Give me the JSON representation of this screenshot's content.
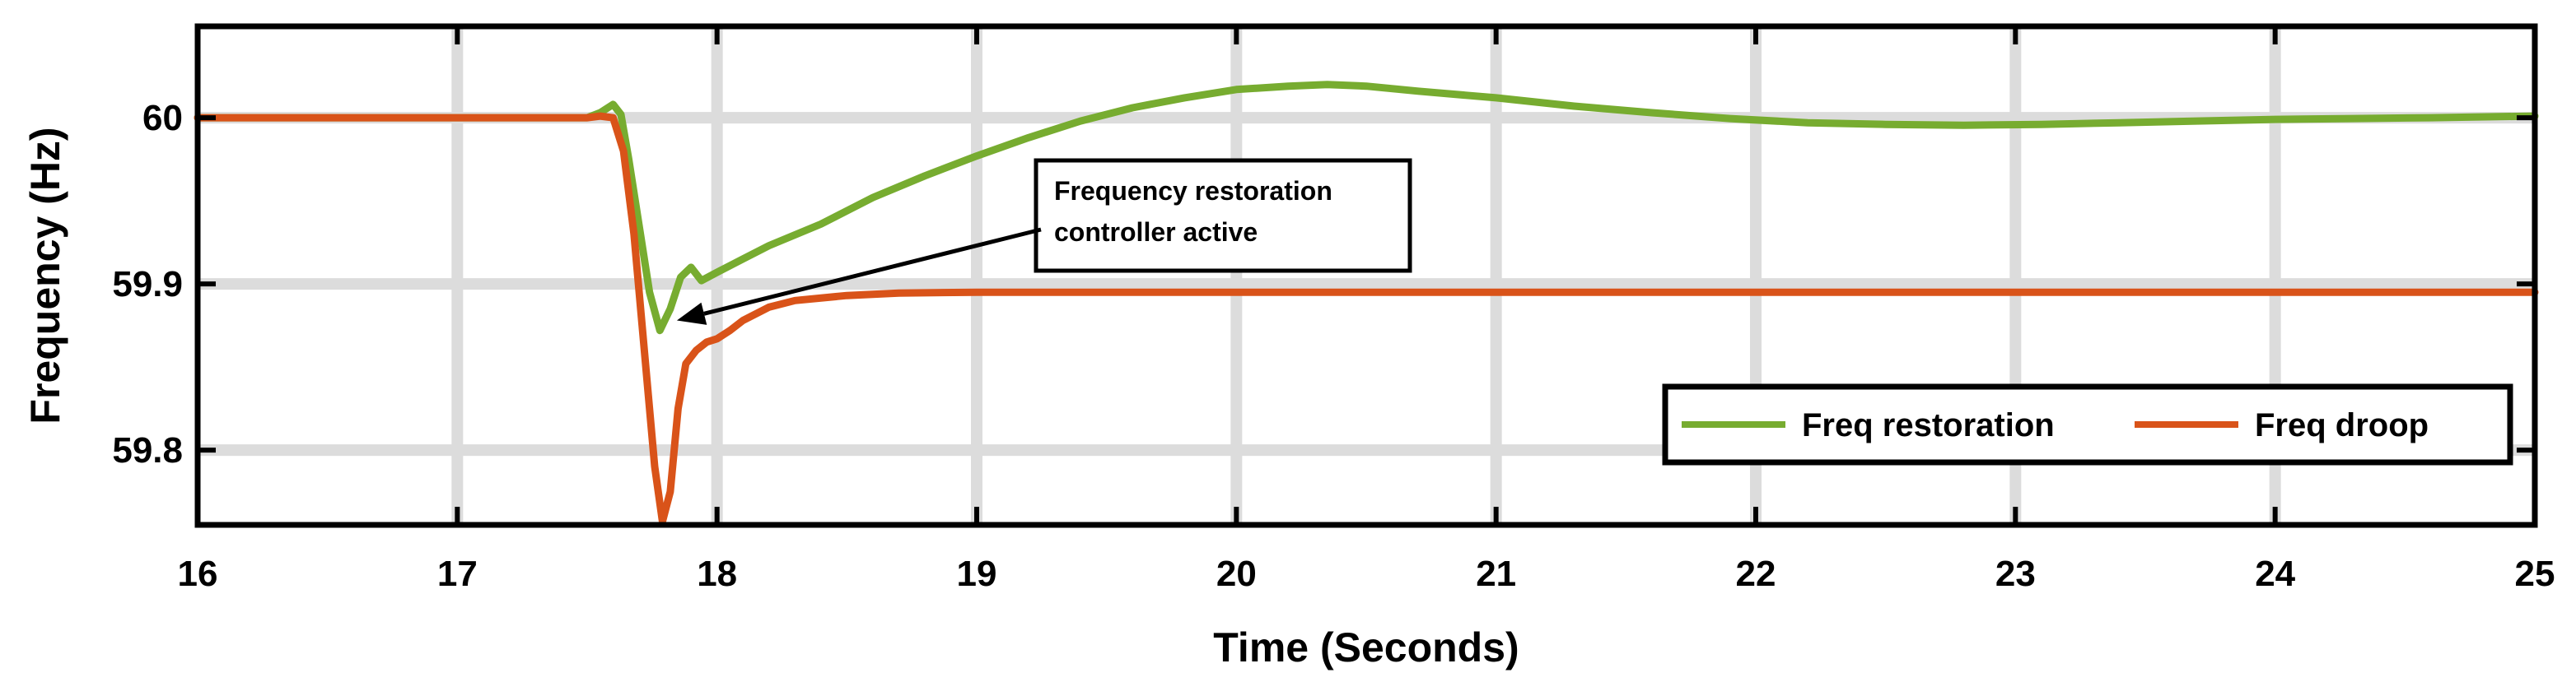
{
  "chart_data": {
    "type": "line",
    "xlabel": "Time (Seconds)",
    "ylabel": "Frequency (Hz)",
    "xlim": [
      16,
      25
    ],
    "ylim": [
      59.755,
      60.055
    ],
    "xticks": [
      16,
      17,
      18,
      19,
      20,
      21,
      22,
      23,
      24,
      25
    ],
    "yticks": [
      59.8,
      59.9,
      60
    ],
    "ytick_labels": [
      "59.8",
      "59.9",
      "60"
    ],
    "grid": true,
    "legend_position": "bottom-right",
    "annotation": {
      "lines": [
        "Frequency restoration",
        "controller active"
      ],
      "arrow_target": [
        17.82,
        59.877
      ]
    },
    "series": [
      {
        "name": "Freq restoration",
        "color": "#77ac30",
        "x": [
          16,
          17.0,
          17.5,
          17.55,
          17.6,
          17.63,
          17.66,
          17.7,
          17.74,
          17.78,
          17.82,
          17.86,
          17.9,
          17.94,
          18.0,
          18.1,
          18.2,
          18.4,
          18.6,
          18.8,
          19.0,
          19.2,
          19.4,
          19.6,
          19.8,
          20.0,
          20.2,
          20.35,
          20.5,
          20.7,
          21.0,
          21.3,
          21.6,
          21.9,
          22.2,
          22.5,
          22.8,
          23.1,
          23.4,
          23.7,
          24.0,
          24.3,
          24.6,
          25.0
        ],
        "y": [
          60.0,
          60.0,
          60.0,
          60.003,
          60.008,
          60.002,
          59.975,
          59.935,
          59.895,
          59.872,
          59.885,
          59.904,
          59.91,
          59.902,
          59.907,
          59.915,
          59.923,
          59.936,
          59.952,
          59.965,
          59.977,
          59.988,
          59.998,
          60.006,
          60.012,
          60.017,
          60.019,
          60.02,
          60.019,
          60.016,
          60.012,
          60.007,
          60.003,
          59.9995,
          59.997,
          59.996,
          59.9955,
          59.996,
          59.997,
          59.998,
          59.999,
          59.9995,
          60.0,
          60.001
        ]
      },
      {
        "name": "Freq droop",
        "color": "#d95319",
        "x": [
          16,
          17.0,
          17.5,
          17.55,
          17.6,
          17.64,
          17.68,
          17.72,
          17.76,
          17.79,
          17.82,
          17.85,
          17.88,
          17.92,
          17.96,
          18.0,
          18.05,
          18.1,
          18.2,
          18.3,
          18.5,
          18.7,
          19.0,
          19.5,
          20.0,
          20.5,
          21.0,
          21.5,
          22.0,
          22.5,
          23.0,
          23.5,
          24.0,
          24.5,
          25.0
        ],
        "y": [
          60.0,
          60.0,
          60.0,
          60.001,
          60.0,
          59.98,
          59.93,
          59.86,
          59.79,
          59.757,
          59.775,
          59.825,
          59.852,
          59.86,
          59.865,
          59.867,
          59.872,
          59.878,
          59.886,
          59.89,
          59.893,
          59.8945,
          59.895,
          59.895,
          59.895,
          59.895,
          59.895,
          59.895,
          59.895,
          59.895,
          59.895,
          59.895,
          59.895,
          59.895,
          59.895
        ]
      }
    ]
  }
}
